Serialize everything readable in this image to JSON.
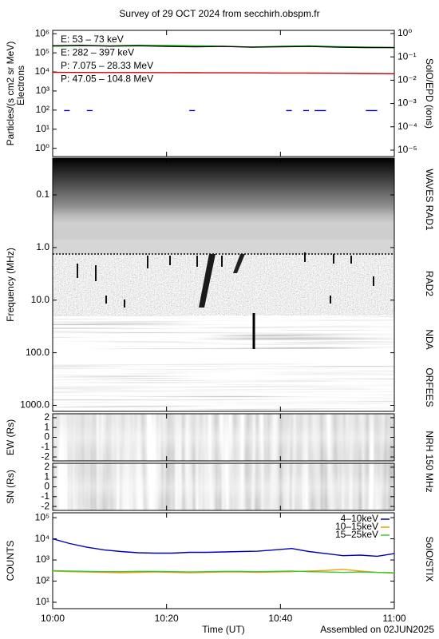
{
  "title": "Survey of 29 OCT 2024 from secchirh.obspm.fr",
  "time_axis": {
    "label": "Time (UT)",
    "xlim": [
      "10:00",
      "11:00"
    ],
    "xticks": [
      "10:00",
      "10:20",
      "10:40",
      "11:00"
    ]
  },
  "footer": "Assembled on 02JUN2025",
  "chart_data": [
    {
      "type": "line",
      "ylabel": "Particles/(s cm2 sr MeV)",
      "ylabel2": "Electrons",
      "y2label": "SolO/EPD (ions)",
      "log_y": true,
      "legend": "upper left",
      "ylim": [
        0.37,
        1500000
      ],
      "yticks": [
        {
          "value": 1,
          "label": "10⁰"
        },
        {
          "value": 10,
          "label": "10¹"
        },
        {
          "value": 100,
          "label": "10²"
        },
        {
          "value": 1000,
          "label": "10³"
        },
        {
          "value": 10000,
          "label": "10⁴"
        },
        {
          "value": 100000,
          "label": "10⁵"
        },
        {
          "value": 1000000,
          "label": "10⁶"
        }
      ],
      "y2lim": [
        5.3e-06,
        1.37
      ],
      "y2ticks": [
        {
          "value": 1e-05,
          "label": "10⁻⁵"
        },
        {
          "value": 0.0001,
          "label": "10⁻⁴"
        },
        {
          "value": 0.001,
          "label": "10⁻³"
        },
        {
          "value": 0.01,
          "label": "10⁻²"
        },
        {
          "value": 0.1,
          "label": "10⁻¹"
        },
        {
          "value": 1,
          "label": "10⁰"
        }
      ],
      "x": [
        "10:00",
        "10:05",
        "10:10",
        "10:15",
        "10:20",
        "10:25",
        "10:30",
        "10:35",
        "10:40",
        "10:45",
        "10:50",
        "10:55",
        "11:00"
      ],
      "series": [
        {
          "name": "E: 53 – 73 keV",
          "color": "#00cc00",
          "values": [
            220000,
            240000,
            230000,
            250000,
            240000,
            230000,
            220000,
            200000,
            220000,
            230000,
            210000,
            200000,
            190000
          ]
        },
        {
          "name": "E: 282 – 397 keV",
          "color": "#cc0000",
          "values": [
            9500,
            9400,
            9300,
            9300,
            9200,
            9100,
            9000,
            8900,
            8800,
            8700,
            8500,
            8300,
            8000
          ]
        },
        {
          "name": "P: 7.075 – 28.33 MeV",
          "color": "#000000",
          "axis": "y2",
          "values": [
            0.3,
            0.31,
            0.29,
            0.3,
            0.28,
            0.27,
            0.28,
            0.26,
            0.27,
            0.28,
            0.26,
            0.25,
            0.25
          ]
        },
        {
          "name": "P: 47.05 – 104.8 MeV",
          "color": "#0000cc",
          "axis": "y2",
          "x": [
            "10:02",
            "10:03",
            "10:03",
            "10:06",
            "10:07",
            "10:07",
            "10:24",
            "10:25",
            "10:25",
            "10:41",
            "10:42",
            "10:42",
            "10:44",
            "10:45",
            "10:45",
            "10:46",
            "10:48",
            "10:48",
            "10:55",
            "10:57"
          ],
          "values": [
            0.0005,
            0.0005,
            null,
            0.0005,
            0.0005,
            null,
            0.0005,
            0.0005,
            null,
            0.0005,
            0.0005,
            null,
            0.0005,
            0.0005,
            null,
            0.0005,
            0.0005,
            null,
            0.0005,
            0.0005
          ]
        }
      ]
    },
    {
      "type": "spectrogram",
      "ylabel": "Frequency (MHz)",
      "log_y": true,
      "invert_y": true,
      "ylim": [
        0.02,
        1300
      ],
      "yticks": [
        0.1,
        {
          "value": 1,
          "label": "1.0"
        },
        {
          "value": 10,
          "label": "10.0"
        },
        {
          "value": 100,
          "label": "100.0"
        },
        {
          "value": 1000,
          "label": "1000.0"
        }
      ],
      "band_labels": [
        "WAVES RAD1",
        "RAD2",
        "NDA",
        "ORFEES"
      ]
    },
    {
      "type": "image",
      "ylabel": "EW (Rs)",
      "y2label": "NRH 150 MHz",
      "ylim": [
        -2.4,
        2.4
      ],
      "yticks": [
        -2,
        -1,
        0,
        1,
        2
      ]
    },
    {
      "type": "image",
      "ylabel": "SN (Rs)",
      "ylim": [
        -2.4,
        2.4
      ],
      "yticks": [
        -2,
        -1,
        0,
        1,
        2
      ]
    },
    {
      "type": "line",
      "ylabel": "COUNTS",
      "y2label": "SolO/STIX",
      "log_y": true,
      "legend": "upper right",
      "ylim": [
        5,
        170000
      ],
      "yticks": [
        {
          "value": 10,
          "label": "10¹"
        },
        {
          "value": 100,
          "label": "10²"
        },
        {
          "value": 1000,
          "label": "10³"
        },
        {
          "value": 10000,
          "label": "10⁴"
        },
        {
          "value": 100000,
          "label": "10⁵"
        }
      ],
      "x": [
        "10:00",
        "10:03",
        "10:06",
        "10:09",
        "10:12",
        "10:15",
        "10:18",
        "10:21",
        "10:24",
        "10:27",
        "10:30",
        "10:33",
        "10:36",
        "10:39",
        "10:42",
        "10:45",
        "10:48",
        "10:51",
        "10:54",
        "10:57",
        "11:00"
      ],
      "series": [
        {
          "name": "4–10keV",
          "color": "#0000bb",
          "values": [
            10000,
            6000,
            4000,
            3000,
            2500,
            2200,
            2100,
            2100,
            2300,
            2300,
            2400,
            2500,
            2600,
            3000,
            3500,
            2500,
            2000,
            1600,
            1700,
            1500,
            2000
          ]
        },
        {
          "name": "10–15keV",
          "color": "#ff9900",
          "values": [
            300,
            280,
            270,
            260,
            250,
            260,
            270,
            260,
            250,
            260,
            270,
            270,
            260,
            270,
            280,
            300,
            320,
            360,
            300,
            260,
            250
          ]
        },
        {
          "name": "15–25keV",
          "color": "#33cc33",
          "values": [
            310,
            300,
            290,
            280,
            280,
            290,
            290,
            280,
            270,
            280,
            290,
            290,
            280,
            290,
            300,
            280,
            270,
            260,
            270,
            260,
            240
          ]
        }
      ]
    }
  ]
}
